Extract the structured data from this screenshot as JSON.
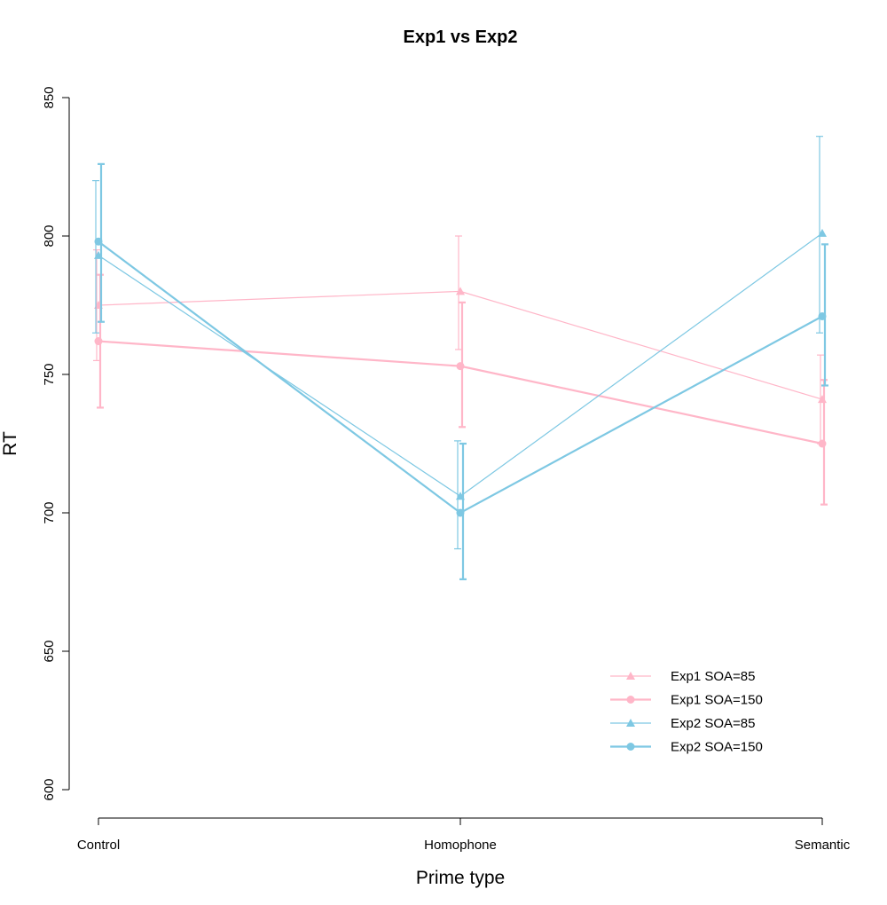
{
  "chart_data": {
    "type": "line",
    "title": "Exp1 vs Exp2",
    "xlabel": "Prime type",
    "ylabel": "RT",
    "categories": [
      "Control",
      "Homophone",
      "Semantic"
    ],
    "ylim": [
      600,
      850
    ],
    "yticks": [
      600,
      650,
      700,
      750,
      800,
      850
    ],
    "grid": false,
    "legend_position": "bottom-right",
    "series": [
      {
        "name": "Exp1 SOA=85",
        "color": "#FFB6C8",
        "marker": "triangle",
        "line": "thin",
        "values": [
          775,
          780,
          741
        ],
        "err_low": [
          755,
          759,
          725
        ],
        "err_high": [
          795,
          800,
          757
        ]
      },
      {
        "name": "Exp1 SOA=150",
        "color": "#FFB6C8",
        "marker": "circle",
        "line": "thick",
        "values": [
          762,
          753,
          725
        ],
        "err_low": [
          738,
          731,
          703
        ],
        "err_high": [
          786,
          776,
          748
        ]
      },
      {
        "name": "Exp2 SOA=85",
        "color": "#7EC8E3",
        "marker": "triangle",
        "line": "thin",
        "values": [
          793,
          706,
          801
        ],
        "err_low": [
          765,
          687,
          765
        ],
        "err_high": [
          820,
          726,
          836
        ]
      },
      {
        "name": "Exp2 SOA=150",
        "color": "#7EC8E3",
        "marker": "circle",
        "line": "thick",
        "values": [
          798,
          700,
          771
        ],
        "err_low": [
          769,
          676,
          746
        ],
        "err_high": [
          826,
          725,
          797
        ]
      }
    ]
  }
}
